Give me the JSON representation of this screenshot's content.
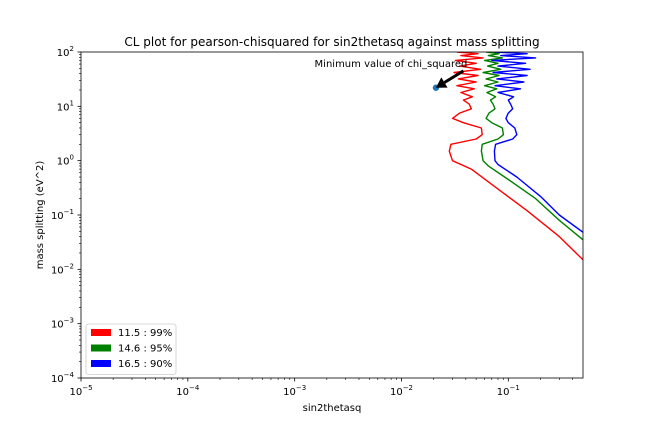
{
  "chart_data": {
    "type": "line",
    "title": "CL plot for pearson-chisquared for sin2thetasq against mass splitting",
    "xlabel": "sin2thetasq",
    "ylabel": "mass splitting (eV^2)",
    "xscale": "log",
    "yscale": "log",
    "xlim": [
      1e-05,
      0.5
    ],
    "ylim": [
      0.0001,
      100
    ],
    "x_ticks": [
      {
        "value": 1e-05,
        "base": "10",
        "exp": "−5"
      },
      {
        "value": 0.0001,
        "base": "10",
        "exp": "−4"
      },
      {
        "value": 0.001,
        "base": "10",
        "exp": "−3"
      },
      {
        "value": 0.01,
        "base": "10",
        "exp": "−2"
      },
      {
        "value": 0.1,
        "base": "10",
        "exp": "−1"
      }
    ],
    "y_ticks": [
      {
        "value": 0.0001,
        "base": "10",
        "exp": "−4"
      },
      {
        "value": 0.001,
        "base": "10",
        "exp": "−3"
      },
      {
        "value": 0.01,
        "base": "10",
        "exp": "−2"
      },
      {
        "value": 0.1,
        "base": "10",
        "exp": "−1"
      },
      {
        "value": 1,
        "base": "10",
        "exp": "0"
      },
      {
        "value": 10,
        "base": "10",
        "exp": "1"
      },
      {
        "value": 100,
        "base": "10",
        "exp": "2"
      }
    ],
    "legend_position": "lower-left",
    "grid": false,
    "series": [
      {
        "name": "11.5 : 99%",
        "color": "#ff0000",
        "points": [
          [
            0.5,
            0.015
          ],
          [
            0.3,
            0.04
          ],
          [
            0.15,
            0.12
          ],
          [
            0.08,
            0.3
          ],
          [
            0.045,
            0.7
          ],
          [
            0.03,
            1.0
          ],
          [
            0.028,
            1.5
          ],
          [
            0.029,
            2.0
          ],
          [
            0.05,
            2.5
          ],
          [
            0.057,
            3.0
          ],
          [
            0.056,
            4.0
          ],
          [
            0.038,
            5.0
          ],
          [
            0.03,
            6.0
          ],
          [
            0.035,
            7.5
          ],
          [
            0.045,
            9.0
          ],
          [
            0.043,
            11
          ],
          [
            0.038,
            13
          ],
          [
            0.046,
            15
          ],
          [
            0.036,
            18
          ],
          [
            0.048,
            21
          ],
          [
            0.033,
            24
          ],
          [
            0.05,
            28
          ],
          [
            0.034,
            32
          ],
          [
            0.052,
            37
          ],
          [
            0.031,
            42
          ],
          [
            0.055,
            48
          ],
          [
            0.035,
            55
          ],
          [
            0.05,
            62
          ],
          [
            0.032,
            70
          ],
          [
            0.058,
            78
          ],
          [
            0.036,
            86
          ],
          [
            0.052,
            93
          ],
          [
            0.033,
            100
          ]
        ]
      },
      {
        "name": "14.6 : 95%",
        "color": "#008000",
        "points": [
          [
            0.5,
            0.035
          ],
          [
            0.3,
            0.08
          ],
          [
            0.18,
            0.2
          ],
          [
            0.1,
            0.45
          ],
          [
            0.065,
            0.8
          ],
          [
            0.058,
            1.0
          ],
          [
            0.056,
            1.5
          ],
          [
            0.057,
            2.0
          ],
          [
            0.08,
            2.5
          ],
          [
            0.09,
            3.0
          ],
          [
            0.088,
            4.0
          ],
          [
            0.07,
            5.0
          ],
          [
            0.062,
            6.0
          ],
          [
            0.066,
            7.5
          ],
          [
            0.075,
            9.0
          ],
          [
            0.072,
            11
          ],
          [
            0.068,
            13
          ],
          [
            0.076,
            15
          ],
          [
            0.063,
            18
          ],
          [
            0.078,
            21
          ],
          [
            0.06,
            24
          ],
          [
            0.08,
            28
          ],
          [
            0.062,
            32
          ],
          [
            0.082,
            37
          ],
          [
            0.058,
            42
          ],
          [
            0.085,
            48
          ],
          [
            0.064,
            55
          ],
          [
            0.08,
            62
          ],
          [
            0.06,
            70
          ],
          [
            0.088,
            78
          ],
          [
            0.065,
            86
          ],
          [
            0.082,
            93
          ],
          [
            0.062,
            100
          ]
        ]
      },
      {
        "name": "16.5 : 90%",
        "color": "#0000ff",
        "points": [
          [
            0.5,
            0.048
          ],
          [
            0.3,
            0.1
          ],
          [
            0.2,
            0.22
          ],
          [
            0.12,
            0.5
          ],
          [
            0.08,
            0.85
          ],
          [
            0.075,
            1.0
          ],
          [
            0.074,
            1.5
          ],
          [
            0.076,
            2.0
          ],
          [
            0.11,
            2.5
          ],
          [
            0.12,
            3.0
          ],
          [
            0.115,
            4.0
          ],
          [
            0.1,
            5.0
          ],
          [
            0.095,
            6.0
          ],
          [
            0.1,
            7.5
          ],
          [
            0.11,
            9.0
          ],
          [
            0.105,
            11
          ],
          [
            0.1,
            13
          ],
          [
            0.112,
            15
          ],
          [
            0.08,
            18
          ],
          [
            0.13,
            21
          ],
          [
            0.075,
            24
          ],
          [
            0.14,
            28
          ],
          [
            0.078,
            32
          ],
          [
            0.15,
            37
          ],
          [
            0.072,
            42
          ],
          [
            0.16,
            48
          ],
          [
            0.08,
            55
          ],
          [
            0.145,
            62
          ],
          [
            0.07,
            70
          ],
          [
            0.18,
            78
          ],
          [
            0.085,
            86
          ],
          [
            0.15,
            93
          ],
          [
            0.075,
            100
          ]
        ]
      }
    ],
    "minimum_point": {
      "x": 0.021,
      "y": 22,
      "color": "#1f77b4"
    },
    "annotation": {
      "text": "Minimum value of chi_squared",
      "arrow_tail": {
        "x": 0.038,
        "y": 45
      },
      "arrow_head": {
        "x": 0.021,
        "y": 22
      }
    }
  }
}
